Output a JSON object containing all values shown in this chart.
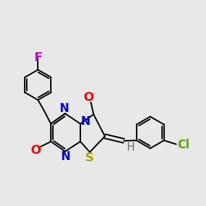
{
  "bg": "#e8e8e8",
  "figsize": [
    3.0,
    3.0
  ],
  "dpi": 100,
  "F_color": "#cc00cc",
  "N_color": "#0000dd",
  "O_color": "#ff0000",
  "S_color": "#aaaa00",
  "Cl_color": "#55aa00",
  "H_color": "#666666",
  "bond_color": "#000000",
  "lw": 1.5,
  "xlim": [
    0.2,
    5.6
  ],
  "ylim": [
    -0.3,
    3.5
  ]
}
